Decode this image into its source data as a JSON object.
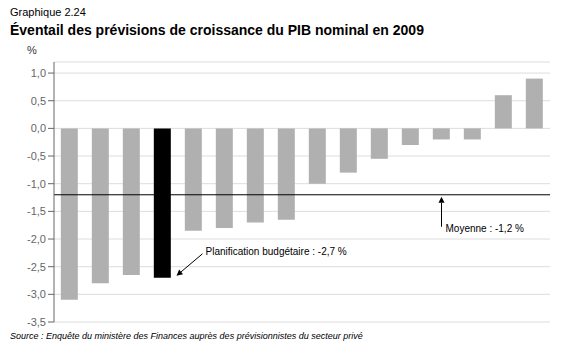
{
  "chart_data": {
    "type": "bar",
    "subtitle": "Graphique 2.24",
    "title": "Éventail des prévisions de croissance du PIB nominal en 2009",
    "ylabel": "%",
    "source": "Source : Enquête du ministère des Finances auprès des prévisionnistes du secteur privé",
    "categories": [
      null,
      null,
      null,
      null,
      null,
      null,
      null,
      null,
      null,
      null,
      null,
      null,
      null,
      null,
      null,
      null
    ],
    "values": [
      -3.1,
      -2.8,
      -2.65,
      -2.7,
      -1.85,
      -1.8,
      -1.7,
      -1.65,
      -1.0,
      -0.8,
      -0.55,
      -0.3,
      -0.2,
      -0.2,
      0.6,
      0.9
    ],
    "colors": [
      "#b0b0b0",
      "#b0b0b0",
      "#b0b0b0",
      "#000000",
      "#b0b0b0",
      "#b0b0b0",
      "#b0b0b0",
      "#b0b0b0",
      "#b0b0b0",
      "#b0b0b0",
      "#b0b0b0",
      "#b0b0b0",
      "#b0b0b0",
      "#b0b0b0",
      "#b0b0b0",
      "#b0b0b0"
    ],
    "reference_line": {
      "value": -1.2,
      "label": "Moyenne : -1,2 %"
    },
    "annotations": [
      {
        "text": "Planification budgétaire : -2,7 %",
        "value": -2.7
      }
    ],
    "ylim": [
      -3.5,
      1.2
    ],
    "yticks": [
      {
        "value": -3.5,
        "label": "-3,5"
      },
      {
        "value": -3.0,
        "label": "-3,0"
      },
      {
        "value": -2.5,
        "label": "-2,5"
      },
      {
        "value": -2.0,
        "label": "-2,0"
      },
      {
        "value": -1.5,
        "label": "-1,5"
      },
      {
        "value": -1.0,
        "label": "-1,0"
      },
      {
        "value": -0.5,
        "label": "-0,5"
      },
      {
        "value": 0.0,
        "label": "0,0"
      },
      {
        "value": 0.5,
        "label": "0,5"
      },
      {
        "value": 1.0,
        "label": "1,0"
      }
    ],
    "grid": true,
    "tick_labels": "y"
  }
}
